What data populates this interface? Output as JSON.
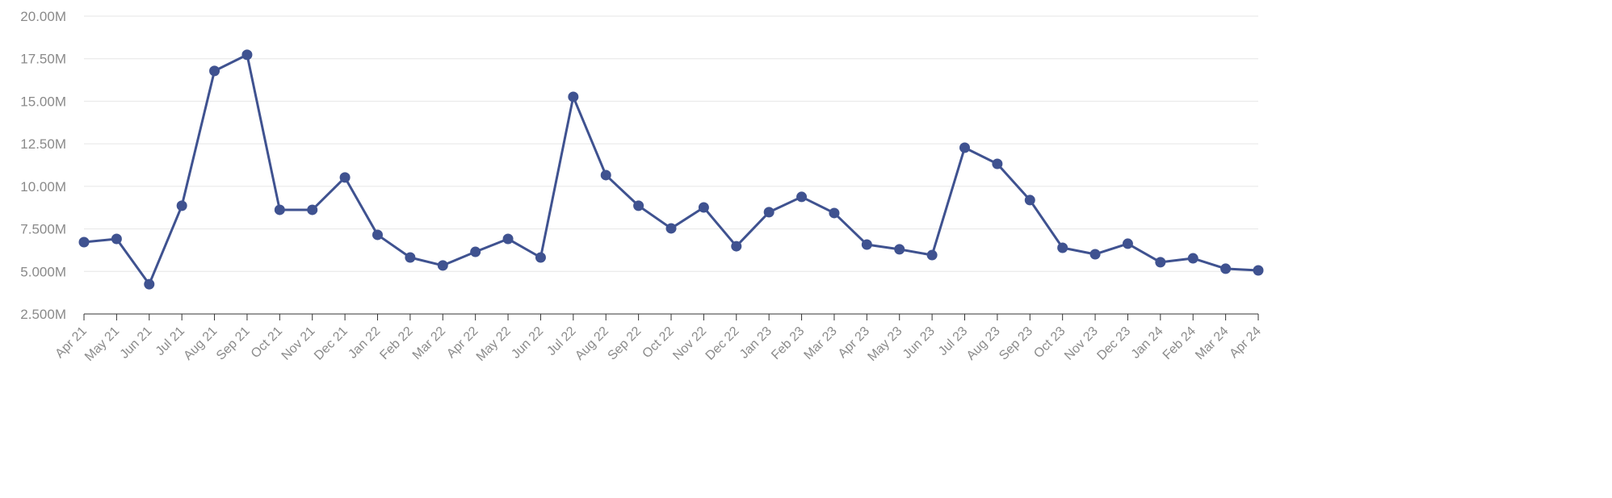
{
  "chart_data": {
    "type": "line",
    "title": "",
    "xlabel": "",
    "ylabel": "",
    "ylim": [
      2500000,
      20000000
    ],
    "yticks": [
      2500000,
      5000000,
      7500000,
      10000000,
      12500000,
      15000000,
      17500000,
      20000000
    ],
    "ytick_labels": [
      "2.500M",
      "5.000M",
      "7.500M",
      "10.00M",
      "12.50M",
      "15.00M",
      "17.50M",
      "20.00M"
    ],
    "grid": true,
    "color": "#3f5290",
    "categories": [
      "Apr 21",
      "May 21",
      "Jun 21",
      "Jul 21",
      "Aug 21",
      "Sep 21",
      "Oct 21",
      "Nov 21",
      "Dec 21",
      "Jan 22",
      "Feb 22",
      "Mar 22",
      "Apr 22",
      "May 22",
      "Jun 22",
      "Jul 22",
      "Aug 22",
      "Sep 22",
      "Oct 22",
      "Nov 22",
      "Dec 22",
      "Jan 23",
      "Feb 23",
      "Mar 23",
      "Apr 23",
      "May 23",
      "Jun 23",
      "Jul 23",
      "Aug 23",
      "Sep 23",
      "Oct 23",
      "Nov 23",
      "Dec 23",
      "Jan 24",
      "Feb 24",
      "Mar 24",
      "Apr 24"
    ],
    "values": [
      6720000,
      6910000,
      4250000,
      8860000,
      16780000,
      17730000,
      8620000,
      8620000,
      10520000,
      7150000,
      5820000,
      5350000,
      6150000,
      6910000,
      5820000,
      15260000,
      10660000,
      8860000,
      7530000,
      8760000,
      6480000,
      8480000,
      9380000,
      8430000,
      6580000,
      6300000,
      5960000,
      12270000,
      11320000,
      9190000,
      6390000,
      6010000,
      6630000,
      5540000,
      5770000,
      5160000,
      5060000
    ]
  }
}
